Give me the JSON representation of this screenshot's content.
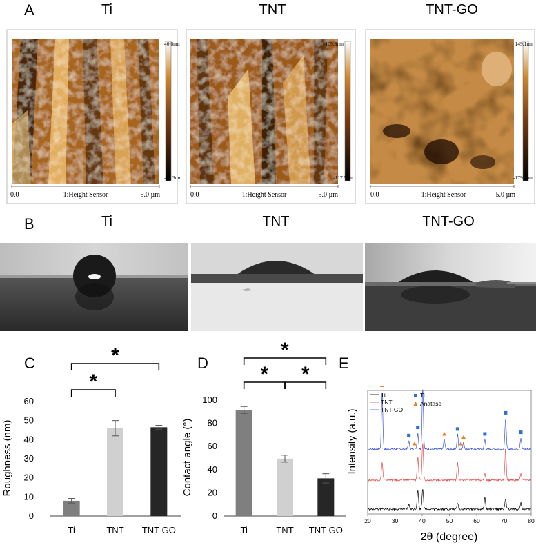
{
  "panels": {
    "A": {
      "letter": "A",
      "images": [
        {
          "title": "Ti",
          "scale_max": "40.6nm",
          "scale_min": "-43.3nm",
          "x_start": "0.0",
          "sensor": "1:Height Sensor",
          "x_end": "5.0 µm"
        },
        {
          "title": "TNT",
          "scale_max": "109.3nm",
          "scale_min": "-117.5nm",
          "x_start": "0.0",
          "sensor": "1:Height Sensor",
          "x_end": "5.0 µm"
        },
        {
          "title": "TNT-GO",
          "scale_max": "149.1nm",
          "scale_min": "-179.9nm",
          "x_start": "0.0",
          "sensor": "1:Height Sensor",
          "x_end": "5.0 µm"
        }
      ]
    },
    "B": {
      "letter": "B",
      "images": [
        {
          "title": "Ti"
        },
        {
          "title": "TNT"
        },
        {
          "title": "TNT-GO"
        }
      ]
    },
    "C": {
      "letter": "C"
    },
    "D": {
      "letter": "D"
    },
    "E": {
      "letter": "E"
    }
  },
  "colors": {
    "bar_ti": "#7f7f7f",
    "bar_tnt": "#d0d0d0",
    "bar_tntgo": "#262626",
    "xrd_ti": "#000000",
    "xrd_tnt": "#e34a4a",
    "xrd_tntgo": "#3a52d9",
    "marker_ti": "#2e6fd6",
    "marker_anatase": "#ee7d22"
  },
  "chart_data": [
    {
      "id": "C",
      "type": "bar",
      "categories": [
        "Ti",
        "TNT",
        "TNT-GO"
      ],
      "values": [
        8,
        46,
        46.5
      ],
      "errors": [
        1.2,
        4,
        1
      ],
      "title": "",
      "xlabel": "",
      "ylabel": "Roughness (nm)",
      "ylim": [
        0,
        60
      ],
      "yticks": [
        0,
        10,
        20,
        30,
        40,
        50,
        60
      ],
      "significance": [
        {
          "from": 0,
          "to": 1,
          "label": "*"
        },
        {
          "from": 0,
          "to": 2,
          "label": "*"
        }
      ]
    },
    {
      "id": "D",
      "type": "bar",
      "categories": [
        "Ti",
        "TNT",
        "TNT-GO"
      ],
      "values": [
        91.5,
        49.5,
        32.5
      ],
      "errors": [
        3,
        3,
        4
      ],
      "title": "",
      "xlabel": "",
      "ylabel": "Contact angle (°)",
      "ylim": [
        0,
        100
      ],
      "yticks": [
        0,
        20,
        40,
        60,
        80,
        100
      ],
      "significance": [
        {
          "from": 0,
          "to": 1,
          "label": "*"
        },
        {
          "from": 1,
          "to": 2,
          "label": "*"
        },
        {
          "from": 0,
          "to": 2,
          "label": "*"
        }
      ]
    },
    {
      "id": "E",
      "type": "line",
      "xlabel": "2θ (degree)",
      "ylabel": "Intensity (a.u.)",
      "xlim": [
        20,
        80
      ],
      "xticks": [
        20,
        30,
        40,
        50,
        60,
        70,
        80
      ],
      "grid": false,
      "legend": "top-left",
      "legend_entries": [
        "Ti",
        "TNT",
        "TNT-GO"
      ],
      "marker_legend": [
        {
          "label": "Ti",
          "shape": "square"
        },
        {
          "label": "Anatase",
          "shape": "triangle"
        }
      ],
      "series": [
        {
          "name": "TNT-GO",
          "baseline": 3.7,
          "peaks": [
            [
              25.3,
              3.6
            ],
            [
              35.1,
              0.5
            ],
            [
              38.4,
              1.0
            ],
            [
              40.2,
              3.8
            ],
            [
              48.1,
              0.6
            ],
            [
              53.0,
              0.9
            ],
            [
              55.2,
              0.4
            ],
            [
              63.0,
              0.6
            ],
            [
              70.6,
              1.9
            ],
            [
              76.2,
              0.7
            ]
          ]
        },
        {
          "name": "TNT",
          "baseline": 1.8,
          "peaks": [
            [
              25.3,
              1.1
            ],
            [
              38.4,
              1.4
            ],
            [
              40.2,
              2.3
            ],
            [
              53.0,
              1.1
            ],
            [
              63.0,
              0.4
            ],
            [
              70.6,
              1.9
            ],
            [
              76.2,
              0.4
            ]
          ]
        },
        {
          "name": "Ti",
          "baseline": 0.0,
          "peaks": [
            [
              35.1,
              0.3
            ],
            [
              38.4,
              1.2
            ],
            [
              40.2,
              1.3
            ],
            [
              53.0,
              0.4
            ],
            [
              63.0,
              0.7
            ],
            [
              70.6,
              0.6
            ],
            [
              76.2,
              0.4
            ]
          ]
        }
      ],
      "markers": [
        {
          "x": 25.3,
          "type": "anatase"
        },
        {
          "x": 35.1,
          "type": "ti"
        },
        {
          "x": 37.2,
          "type": "anatase"
        },
        {
          "x": 38.4,
          "type": "ti"
        },
        {
          "x": 40.2,
          "type": "ti"
        },
        {
          "x": 48.1,
          "type": "anatase"
        },
        {
          "x": 53.0,
          "type": "ti"
        },
        {
          "x": 54.2,
          "type": "anatase"
        },
        {
          "x": 55.2,
          "type": "anatase"
        },
        {
          "x": 63.0,
          "type": "ti"
        },
        {
          "x": 70.6,
          "type": "ti"
        },
        {
          "x": 76.2,
          "type": "ti"
        }
      ]
    }
  ]
}
